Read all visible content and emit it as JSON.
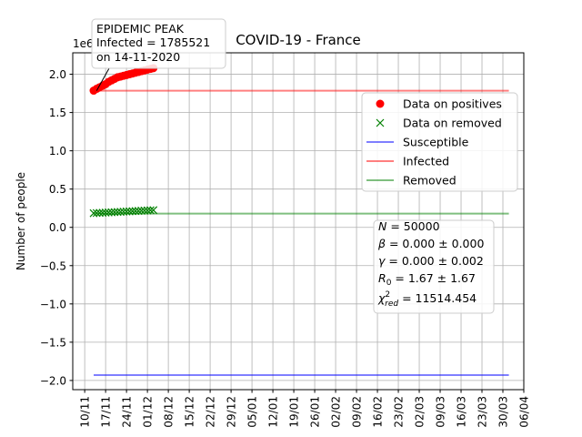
{
  "chart_data": {
    "type": "scatter",
    "title": "COVID-19 - France",
    "ylabel": "Number of people",
    "xlabel": "",
    "y_offset_label": "1e6",
    "ylim": [
      -2.12,
      2.28
    ],
    "yticks": [
      -2.0,
      -1.5,
      -1.0,
      -0.5,
      0.0,
      0.5,
      1.0,
      1.5,
      2.0
    ],
    "ytick_labels": [
      "−2.0",
      "−1.5",
      "−1.0",
      "−0.5",
      "0.0",
      "0.5",
      "1.0",
      "1.5",
      "2.0"
    ],
    "x_axis": "date",
    "xlim": [
      "2020-11-06",
      "2021-04-06"
    ],
    "xticks": [
      "2020-11-10",
      "2020-11-17",
      "2020-11-24",
      "2020-12-01",
      "2020-12-08",
      "2020-12-15",
      "2020-12-22",
      "2020-12-29",
      "2021-01-05",
      "2021-01-12",
      "2021-01-19",
      "2021-01-26",
      "2021-02-02",
      "2021-02-09",
      "2021-02-16",
      "2021-02-23",
      "2021-03-02",
      "2021-03-09",
      "2021-03-16",
      "2021-03-23",
      "2021-03-30",
      "2021-04-06"
    ],
    "xtick_labels": [
      "10/11",
      "17/11",
      "24/11",
      "01/12",
      "08/12",
      "15/12",
      "22/12",
      "29/12",
      "05/01",
      "12/01",
      "19/01",
      "26/01",
      "02/02",
      "09/02",
      "16/02",
      "23/02",
      "02/03",
      "09/03",
      "16/03",
      "23/03",
      "30/03",
      "06/04"
    ],
    "grid": true,
    "legend_position": "upper-right",
    "series": [
      {
        "name": "Data on positives",
        "kind": "marker-dot",
        "color": "#ff0000",
        "x": [
          "2020-11-13",
          "2020-11-14",
          "2020-11-15",
          "2020-11-16",
          "2020-11-17",
          "2020-11-18",
          "2020-11-19",
          "2020-11-20",
          "2020-11-21",
          "2020-11-22",
          "2020-11-23",
          "2020-11-24",
          "2020-11-25",
          "2020-11-26",
          "2020-11-27",
          "2020-11-28",
          "2020-11-29",
          "2020-11-30",
          "2020-12-01",
          "2020-12-02",
          "2020-12-03"
        ],
        "y": [
          1.786,
          1.81,
          1.83,
          1.85,
          1.87,
          1.9,
          1.92,
          1.94,
          1.96,
          1.97,
          1.98,
          1.99,
          2.0,
          2.01,
          2.02,
          2.03,
          2.04,
          2.05,
          2.06,
          2.07,
          2.08
        ]
      },
      {
        "name": "Data on removed",
        "kind": "marker-x",
        "color": "#008000",
        "x": [
          "2020-11-13",
          "2020-11-14",
          "2020-11-15",
          "2020-11-16",
          "2020-11-17",
          "2020-11-18",
          "2020-11-19",
          "2020-11-20",
          "2020-11-21",
          "2020-11-22",
          "2020-11-23",
          "2020-11-24",
          "2020-11-25",
          "2020-11-26",
          "2020-11-27",
          "2020-11-28",
          "2020-11-29",
          "2020-11-30",
          "2020-12-01",
          "2020-12-02",
          "2020-12-03"
        ],
        "y": [
          0.185,
          0.187,
          0.189,
          0.191,
          0.193,
          0.195,
          0.197,
          0.199,
          0.201,
          0.203,
          0.205,
          0.207,
          0.209,
          0.211,
          0.213,
          0.215,
          0.217,
          0.219,
          0.221,
          0.223,
          0.225
        ]
      },
      {
        "name": "Susceptible",
        "kind": "line",
        "color": "#0000ff",
        "x": [
          "2020-11-13",
          "2021-04-01"
        ],
        "y": [
          -1.93,
          -1.93
        ]
      },
      {
        "name": "Infected",
        "kind": "line",
        "color": "#ff0000",
        "x": [
          "2020-11-13",
          "2021-04-01"
        ],
        "y": [
          1.785,
          1.785
        ]
      },
      {
        "name": "Removed",
        "kind": "line",
        "color": "#008000",
        "x": [
          "2020-11-13",
          "2021-04-01"
        ],
        "y": [
          0.18,
          0.18
        ]
      }
    ],
    "peak_annotation": {
      "lines": [
        "EPIDEMIC PEAK",
        "Infected = 1785521",
        "on 14-11-2020"
      ],
      "x": "2020-11-14",
      "y": 1.785
    },
    "params_box": {
      "lines": [
        "N = 50000",
        "β = 0.000 ± 0.000",
        "γ = 0.000 ± 0.002",
        "R0 = 1.67 ± 1.67",
        "χ²red = 11514.454"
      ]
    }
  }
}
